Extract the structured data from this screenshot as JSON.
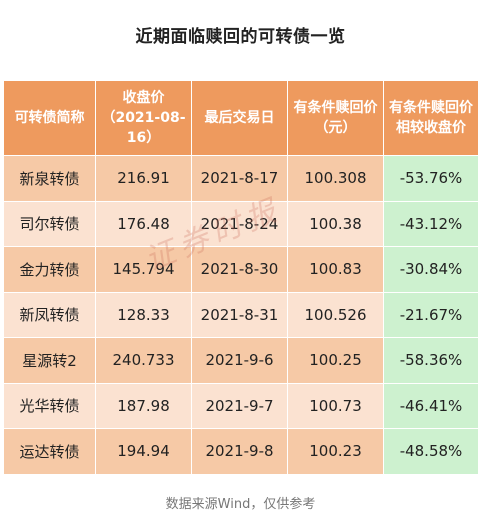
{
  "title": "近期面临赎回的可转债一览",
  "headers": [
    "可转债简称",
    "收盘价（2021-08-16）",
    "最后交易日",
    "有条件赎回价（元）",
    "有条件赎回价相较收盘价"
  ],
  "rows": [
    [
      "新泉转债",
      "216.91",
      "2021-8-17",
      "100.308",
      "-53.76%"
    ],
    [
      "司尔转债",
      "176.48",
      "2021-8-24",
      "100.38",
      "-43.12%"
    ],
    [
      "金力转债",
      "145.794",
      "2021-8-30",
      "100.83",
      "-30.84%"
    ],
    [
      "新凤转债",
      "128.33",
      "2021-8-31",
      "100.526",
      "-21.67%"
    ],
    [
      "星源转2",
      "240.733",
      "2021-9-6",
      "100.25",
      "-58.36%"
    ],
    [
      "光华转债",
      "187.98",
      "2021-9-7",
      "100.73",
      "-46.41%"
    ],
    [
      "运达转债",
      "194.94",
      "2021-9-8",
      "100.23",
      "-48.58%"
    ]
  ],
  "watermark": "证券时报",
  "source": "数据来源Wind，仅供参考",
  "colors": {
    "header_bg": "#ee9a5e",
    "row_odd": "#f6c9a6",
    "row_even": "#fbe2d1",
    "last_col": "#cdf1cf"
  }
}
